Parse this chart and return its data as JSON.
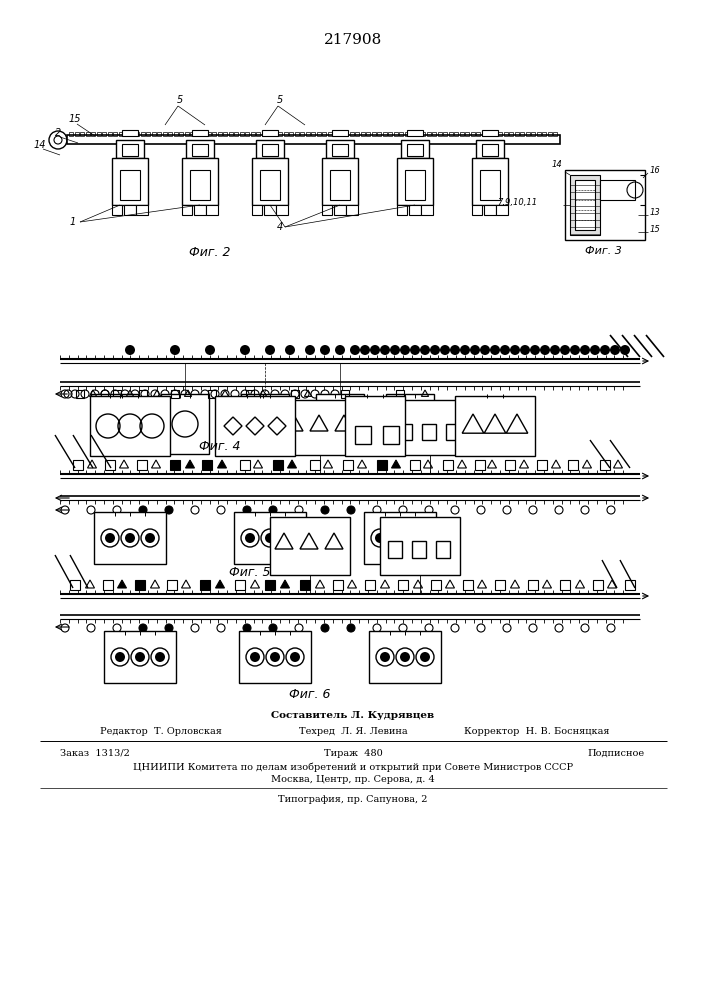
{
  "title": "217908",
  "fig2_label": "Фиг. 2",
  "fig3_label": "Фиг. 3",
  "fig4_label": "Фиг. 4",
  "fig5_label": "Фиг. 5",
  "fig6_label": "Фиг. 6",
  "footer_composer": "Составитель Л. Кудрявцев",
  "footer_editor": "Редактор  Т. Орловская",
  "footer_techred": "Техред  Л. Я. Левина",
  "footer_corrector": "Корректор  Н. В. Босняцкая",
  "footer_order": "Заказ  1313/2",
  "footer_print": "Тираж  480",
  "footer_sub": "Подписное",
  "footer_cniipи": "ЦНИИПИ Комитета по делам изобретений и открытий при Совете Министров СССР",
  "footer_moscow": "Москва, Центр, пр. Серова, д. 4",
  "footer_typo": "Типография, пр. Сапунова, 2",
  "bg_color": "#ffffff",
  "line_color": "#000000"
}
